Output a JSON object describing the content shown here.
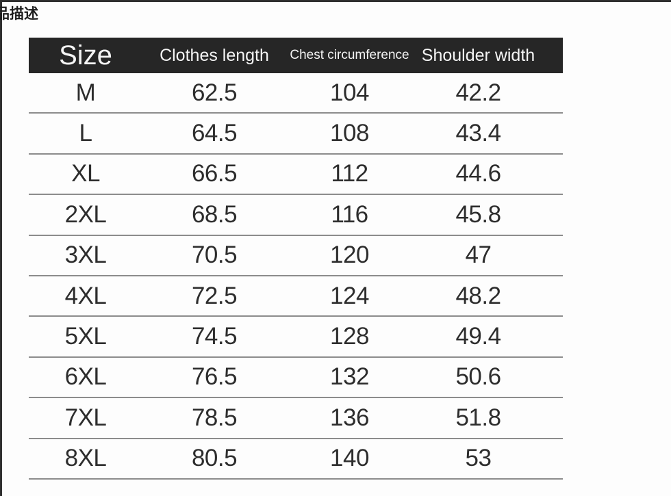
{
  "page": {
    "tab_label": "品描述"
  },
  "table": {
    "headers": [
      {
        "label": "Size"
      },
      {
        "label": "Clothes length"
      },
      {
        "label": "Chest circumference"
      },
      {
        "label": "Shoulder width"
      }
    ],
    "rows": [
      {
        "size": "M",
        "length": "62.5",
        "chest": "104",
        "shoulder": "42.2"
      },
      {
        "size": "L",
        "length": "64.5",
        "chest": "108",
        "shoulder": "43.4"
      },
      {
        "size": "XL",
        "length": "66.5",
        "chest": "112",
        "shoulder": "44.6"
      },
      {
        "size": "2XL",
        "length": "68.5",
        "chest": "116",
        "shoulder": "45.8"
      },
      {
        "size": "3XL",
        "length": "70.5",
        "chest": "120",
        "shoulder": "47"
      },
      {
        "size": "4XL",
        "length": "72.5",
        "chest": "124",
        "shoulder": "48.2"
      },
      {
        "size": "5XL",
        "length": "74.5",
        "chest": "128",
        "shoulder": "49.4"
      },
      {
        "size": "6XL",
        "length": "76.5",
        "chest": "132",
        "shoulder": "50.6"
      },
      {
        "size": "7XL",
        "length": "78.5",
        "chest": "136",
        "shoulder": "51.8"
      },
      {
        "size": "8XL",
        "length": "80.5",
        "chest": "140",
        "shoulder": "53"
      }
    ]
  },
  "colors": {
    "header_bg": "#262626",
    "header_text": "#f5f5f5",
    "body_text": "#2d2d2d",
    "row_line": "#8c8c8c",
    "page_border": "#2f2f2f",
    "background": "#fdfdfd"
  }
}
